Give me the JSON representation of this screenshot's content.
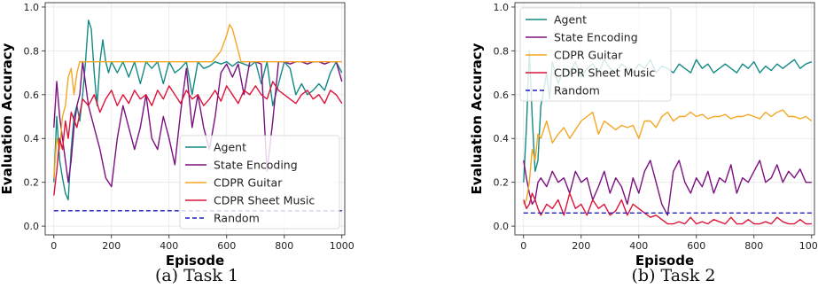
{
  "captions": [
    "(a) Task 1",
    "(b) Task 2"
  ],
  "chart_data": [
    {
      "type": "line",
      "xlabel": "Episode",
      "ylabel": "Evaluation Accuracy",
      "xlim": [
        -30,
        1010
      ],
      "ylim": [
        -0.04,
        1.02
      ],
      "xticks": [
        0,
        200,
        400,
        600,
        800,
        1000
      ],
      "yticks": [
        0.0,
        0.2,
        0.4,
        0.6,
        0.8,
        1.0
      ],
      "ytick_labels": [
        "0.0",
        "0.2",
        "0.4",
        "0.6",
        "0.8",
        "1.0"
      ],
      "grid": true,
      "legend_position": "lower-right",
      "series": [
        {
          "name": "Agent",
          "color": "#138a84",
          "dashed": false,
          "x": [
            0,
            10,
            20,
            30,
            40,
            50,
            60,
            70,
            80,
            90,
            100,
            110,
            120,
            130,
            140,
            150,
            160,
            170,
            180,
            190,
            200,
            220,
            240,
            260,
            280,
            300,
            320,
            340,
            360,
            380,
            400,
            420,
            440,
            460,
            480,
            500,
            520,
            540,
            560,
            580,
            600,
            620,
            640,
            660,
            680,
            700,
            720,
            740,
            760,
            780,
            800,
            820,
            840,
            860,
            880,
            900,
            920,
            940,
            960,
            980,
            1000
          ],
          "y": [
            0.2,
            0.5,
            0.3,
            0.22,
            0.15,
            0.12,
            0.35,
            0.5,
            0.55,
            0.48,
            0.6,
            0.75,
            0.94,
            0.9,
            0.7,
            0.55,
            0.75,
            0.85,
            0.75,
            0.7,
            0.75,
            0.7,
            0.75,
            0.68,
            0.75,
            0.65,
            0.75,
            0.72,
            0.75,
            0.65,
            0.75,
            0.7,
            0.72,
            0.75,
            0.6,
            0.75,
            0.72,
            0.73,
            0.75,
            0.74,
            0.75,
            0.73,
            0.75,
            0.74,
            0.73,
            0.75,
            0.65,
            0.75,
            0.55,
            0.65,
            0.75,
            0.72,
            0.6,
            0.65,
            0.6,
            0.62,
            0.65,
            0.62,
            0.7,
            0.75,
            0.7
          ]
        },
        {
          "name": "State Encoding",
          "color": "#7b1080",
          "dashed": false,
          "x": [
            0,
            10,
            20,
            30,
            40,
            50,
            60,
            70,
            80,
            90,
            100,
            120,
            140,
            160,
            180,
            200,
            220,
            240,
            260,
            280,
            300,
            320,
            340,
            360,
            380,
            400,
            420,
            440,
            460,
            480,
            500,
            520,
            540,
            560,
            580,
            600,
            620,
            640,
            660,
            680,
            700,
            720,
            740,
            760,
            780,
            800,
            820,
            840,
            860,
            880,
            900,
            920,
            940,
            960,
            980,
            1000
          ],
          "y": [
            0.45,
            0.66,
            0.5,
            0.4,
            0.3,
            0.2,
            0.3,
            0.45,
            0.55,
            0.6,
            0.75,
            0.55,
            0.45,
            0.35,
            0.22,
            0.18,
            0.4,
            0.55,
            0.45,
            0.35,
            0.45,
            0.6,
            0.4,
            0.35,
            0.5,
            0.4,
            0.28,
            0.52,
            0.72,
            0.45,
            0.6,
            0.45,
            0.35,
            0.5,
            0.7,
            0.74,
            0.68,
            0.74,
            0.6,
            0.75,
            0.75,
            0.74,
            0.25,
            0.48,
            0.75,
            0.75,
            0.74,
            0.75,
            0.75,
            0.74,
            0.75,
            0.75,
            0.74,
            0.75,
            0.75,
            0.66
          ]
        },
        {
          "name": "CDPR Guitar",
          "color": "#f5a623",
          "dashed": false,
          "x": [
            0,
            10,
            20,
            30,
            40,
            50,
            60,
            70,
            80,
            90,
            100,
            150,
            200,
            250,
            300,
            350,
            400,
            450,
            500,
            550,
            580,
            600,
            610,
            620,
            630,
            650,
            700,
            750,
            800,
            850,
            900,
            950,
            1000
          ],
          "y": [
            0.22,
            0.4,
            0.35,
            0.5,
            0.55,
            0.68,
            0.72,
            0.6,
            0.7,
            0.75,
            0.75,
            0.75,
            0.75,
            0.75,
            0.75,
            0.75,
            0.75,
            0.75,
            0.75,
            0.75,
            0.8,
            0.87,
            0.92,
            0.9,
            0.85,
            0.75,
            0.75,
            0.75,
            0.75,
            0.75,
            0.75,
            0.75,
            0.75
          ]
        },
        {
          "name": "CDPR Sheet Music",
          "color": "#dc143c",
          "dashed": false,
          "x": [
            0,
            10,
            20,
            30,
            40,
            50,
            60,
            80,
            100,
            120,
            140,
            160,
            180,
            200,
            220,
            240,
            260,
            280,
            300,
            320,
            340,
            360,
            380,
            400,
            420,
            440,
            460,
            480,
            500,
            520,
            540,
            560,
            580,
            600,
            620,
            640,
            660,
            680,
            700,
            720,
            740,
            760,
            780,
            800,
            820,
            840,
            860,
            880,
            900,
            920,
            940,
            960,
            980,
            1000
          ],
          "y": [
            0.14,
            0.25,
            0.4,
            0.35,
            0.48,
            0.4,
            0.52,
            0.45,
            0.58,
            0.55,
            0.6,
            0.52,
            0.58,
            0.62,
            0.55,
            0.6,
            0.56,
            0.62,
            0.58,
            0.6,
            0.55,
            0.62,
            0.58,
            0.64,
            0.6,
            0.56,
            0.62,
            0.58,
            0.6,
            0.55,
            0.58,
            0.62,
            0.57,
            0.64,
            0.6,
            0.56,
            0.62,
            0.6,
            0.64,
            0.6,
            0.58,
            0.66,
            0.62,
            0.6,
            0.58,
            0.56,
            0.6,
            0.62,
            0.58,
            0.6,
            0.56,
            0.62,
            0.6,
            0.56
          ]
        },
        {
          "name": "Random",
          "color": "#1f1fbf",
          "dashed": true,
          "x": [
            0,
            1000
          ],
          "y": [
            0.07,
            0.07
          ]
        }
      ]
    },
    {
      "type": "line",
      "xlabel": "Episode",
      "ylabel": "Evaluation Accuracy",
      "xlim": [
        -30,
        1010
      ],
      "ylim": [
        -0.04,
        1.02
      ],
      "xticks": [
        0,
        200,
        400,
        600,
        800,
        1000
      ],
      "yticks": [
        0.0,
        0.2,
        0.4,
        0.6,
        0.8,
        1.0
      ],
      "ytick_labels": [
        "0.0",
        "0.2",
        "0.4",
        "0.6",
        "0.8",
        "1.0"
      ],
      "grid": true,
      "legend_position": "upper-left",
      "series": [
        {
          "name": "Agent",
          "color": "#138a84",
          "dashed": false,
          "x": [
            0,
            10,
            20,
            30,
            40,
            50,
            60,
            70,
            80,
            90,
            100,
            120,
            140,
            160,
            180,
            200,
            220,
            240,
            260,
            280,
            300,
            320,
            340,
            360,
            380,
            400,
            420,
            440,
            460,
            480,
            500,
            520,
            540,
            560,
            580,
            600,
            620,
            640,
            660,
            680,
            700,
            720,
            740,
            760,
            780,
            800,
            820,
            840,
            860,
            880,
            900,
            920,
            940,
            960,
            980,
            1000
          ],
          "y": [
            0.2,
            0.45,
            0.8,
            0.5,
            0.25,
            0.3,
            0.55,
            0.62,
            0.7,
            0.58,
            0.75,
            0.65,
            0.72,
            0.7,
            0.75,
            0.68,
            0.72,
            0.74,
            0.7,
            0.76,
            0.72,
            0.7,
            0.74,
            0.72,
            0.7,
            0.74,
            0.72,
            0.76,
            0.7,
            0.73,
            0.72,
            0.7,
            0.74,
            0.72,
            0.7,
            0.76,
            0.72,
            0.74,
            0.7,
            0.72,
            0.74,
            0.72,
            0.7,
            0.74,
            0.72,
            0.75,
            0.7,
            0.73,
            0.71,
            0.74,
            0.72,
            0.74,
            0.76,
            0.72,
            0.74,
            0.75
          ]
        },
        {
          "name": "State Encoding",
          "color": "#7b1080",
          "dashed": false,
          "x": [
            0,
            10,
            20,
            30,
            40,
            50,
            60,
            80,
            100,
            120,
            140,
            160,
            180,
            200,
            220,
            240,
            260,
            280,
            300,
            320,
            340,
            360,
            380,
            400,
            420,
            440,
            460,
            480,
            500,
            520,
            540,
            560,
            580,
            600,
            620,
            640,
            660,
            680,
            700,
            720,
            740,
            760,
            780,
            800,
            820,
            840,
            860,
            880,
            900,
            920,
            940,
            960,
            980,
            1000
          ],
          "y": [
            0.3,
            0.22,
            0.15,
            0.1,
            0.12,
            0.2,
            0.22,
            0.18,
            0.25,
            0.2,
            0.22,
            0.15,
            0.25,
            0.2,
            0.22,
            0.12,
            0.18,
            0.25,
            0.15,
            0.22,
            0.18,
            0.1,
            0.22,
            0.15,
            0.25,
            0.3,
            0.2,
            0.1,
            0.05,
            0.25,
            0.3,
            0.2,
            0.15,
            0.22,
            0.18,
            0.25,
            0.15,
            0.22,
            0.2,
            0.28,
            0.15,
            0.22,
            0.2,
            0.25,
            0.3,
            0.2,
            0.22,
            0.28,
            0.2,
            0.25,
            0.22,
            0.26,
            0.2,
            0.2
          ]
        },
        {
          "name": "CDPR Guitar",
          "color": "#f5a623",
          "dashed": false,
          "x": [
            0,
            10,
            20,
            30,
            40,
            50,
            60,
            80,
            100,
            120,
            140,
            160,
            180,
            200,
            220,
            240,
            260,
            280,
            300,
            320,
            340,
            360,
            380,
            400,
            420,
            440,
            460,
            480,
            500,
            520,
            540,
            560,
            580,
            600,
            620,
            640,
            660,
            680,
            700,
            720,
            740,
            760,
            780,
            800,
            820,
            840,
            860,
            880,
            900,
            920,
            940,
            960,
            980,
            1000
          ],
          "y": [
            0.1,
            0.12,
            0.2,
            0.35,
            0.3,
            0.42,
            0.4,
            0.48,
            0.38,
            0.42,
            0.45,
            0.4,
            0.44,
            0.48,
            0.5,
            0.52,
            0.42,
            0.48,
            0.46,
            0.44,
            0.46,
            0.45,
            0.46,
            0.4,
            0.48,
            0.48,
            0.45,
            0.5,
            0.52,
            0.48,
            0.5,
            0.5,
            0.52,
            0.5,
            0.51,
            0.49,
            0.5,
            0.5,
            0.51,
            0.49,
            0.5,
            0.5,
            0.51,
            0.5,
            0.49,
            0.52,
            0.5,
            0.52,
            0.53,
            0.5,
            0.5,
            0.49,
            0.5,
            0.48
          ]
        },
        {
          "name": "CDPR Sheet Music",
          "color": "#dc143c",
          "dashed": false,
          "x": [
            0,
            10,
            20,
            30,
            40,
            50,
            60,
            80,
            100,
            120,
            140,
            160,
            180,
            200,
            220,
            240,
            260,
            280,
            300,
            320,
            340,
            360,
            380,
            400,
            420,
            440,
            460,
            480,
            500,
            520,
            540,
            560,
            580,
            600,
            620,
            640,
            660,
            680,
            700,
            720,
            740,
            760,
            780,
            800,
            820,
            840,
            860,
            880,
            900,
            920,
            940,
            960,
            980,
            1000
          ],
          "y": [
            0.12,
            0.08,
            0.1,
            0.15,
            0.12,
            0.08,
            0.05,
            0.1,
            0.08,
            0.12,
            0.05,
            0.15,
            0.08,
            0.1,
            0.05,
            0.12,
            0.08,
            0.1,
            0.05,
            0.07,
            0.12,
            0.05,
            0.1,
            0.08,
            0.06,
            0.04,
            0.05,
            0.03,
            0.01,
            0.01,
            0.02,
            0.01,
            0.04,
            0.01,
            0.02,
            0.01,
            0.03,
            0.02,
            0.01,
            0.04,
            0.01,
            0.01,
            0.03,
            0.01,
            0.01,
            0.02,
            0.01,
            0.04,
            0.02,
            0.01,
            0.01,
            0.03,
            0.01,
            0.01
          ]
        },
        {
          "name": "Random",
          "color": "#1f1fbf",
          "dashed": true,
          "x": [
            0,
            1000
          ],
          "y": [
            0.06,
            0.06
          ]
        }
      ]
    }
  ]
}
